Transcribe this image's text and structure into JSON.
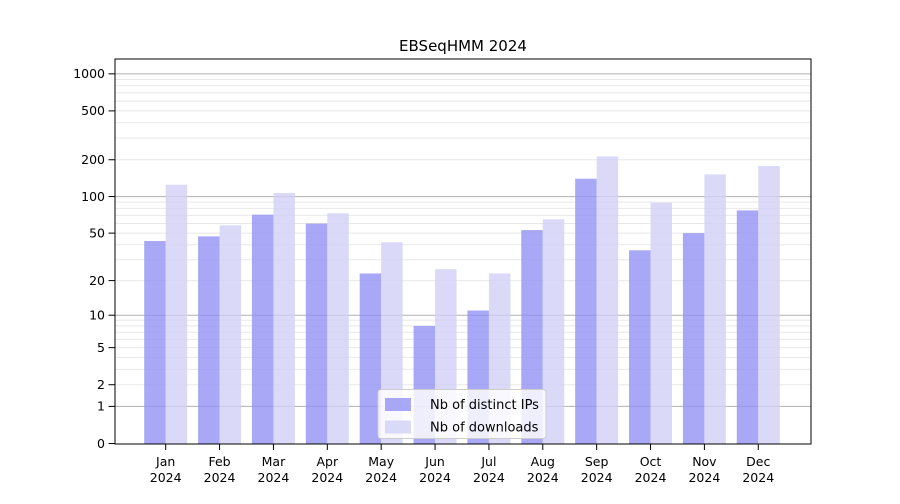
{
  "figure": {
    "title": "EBSeqHMM 2024"
  },
  "chart_data": {
    "type": "bar",
    "title": "EBSeqHMM 2024",
    "categories": [
      "Jan 2024",
      "Feb 2024",
      "Mar 2024",
      "Apr 2024",
      "May 2024",
      "Jun 2024",
      "Jul 2024",
      "Aug 2024",
      "Sep 2024",
      "Oct 2024",
      "Nov 2024",
      "Dec 2024"
    ],
    "month_labels": [
      "Jan",
      "Feb",
      "Mar",
      "Apr",
      "May",
      "Jun",
      "Jul",
      "Aug",
      "Sep",
      "Oct",
      "Nov",
      "Dec"
    ],
    "year_label": "2024",
    "series": [
      {
        "name": "Nb of distinct IPs",
        "color": "#9292f4",
        "values": [
          43,
          47,
          71,
          60,
          23,
          8,
          11,
          53,
          140,
          36,
          50,
          77
        ]
      },
      {
        "name": "Nb of downloads",
        "color": "#d1d1f6",
        "values": [
          125,
          58,
          107,
          73,
          42,
          25,
          23,
          65,
          213,
          89,
          152,
          178
        ]
      }
    ],
    "xlabel": "",
    "ylabel": "",
    "y_scale": "log1p",
    "y_ticks": [
      0,
      1,
      2,
      5,
      10,
      20,
      50,
      100,
      200,
      500,
      1000
    ],
    "ylim": [
      0,
      1000
    ],
    "grid": "horizontal major+minor",
    "major_grid_color": "#b0b0b0",
    "minor_grid_color": "#e8e8e8",
    "legend_position": "lower center inside plot",
    "bar_opacity": 0.8
  }
}
